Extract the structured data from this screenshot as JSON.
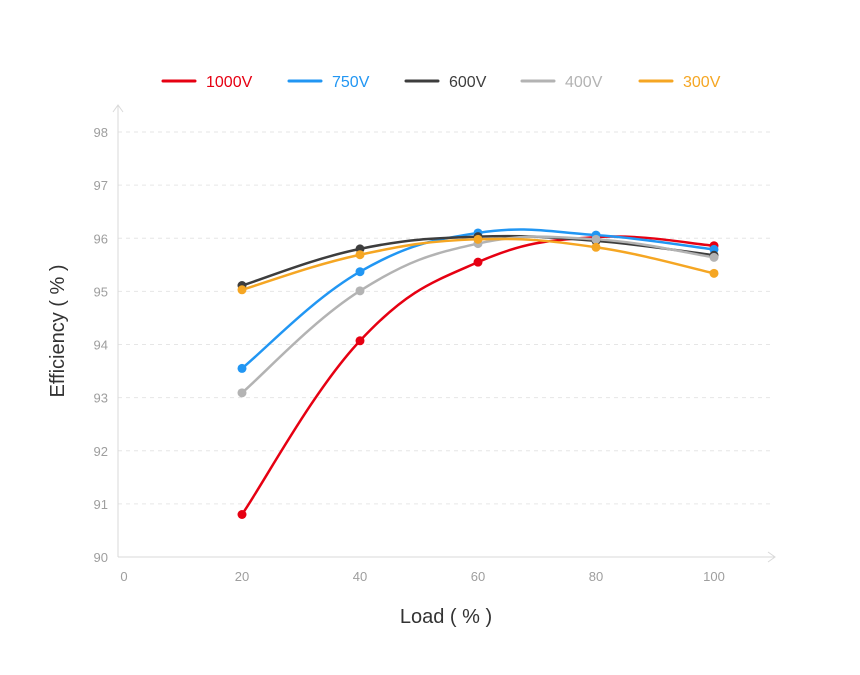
{
  "chart_data": {
    "type": "line",
    "xlabel": "Load ( % )",
    "ylabel": "Efficiency ( % )",
    "xlim": [
      0,
      110
    ],
    "ylim": [
      90,
      98
    ],
    "x_ticks": [
      0,
      20,
      40,
      60,
      80,
      100
    ],
    "y_ticks": [
      90,
      91,
      92,
      93,
      94,
      95,
      96,
      97,
      98
    ],
    "x": [
      20,
      40,
      60,
      80,
      100
    ],
    "grid": "horizontal dashed",
    "legend_position": "top",
    "smooth": true,
    "series": [
      {
        "name": "1000V",
        "color": "#e60012",
        "values": [
          90.8,
          94.07,
          95.55,
          96.02,
          95.86
        ]
      },
      {
        "name": "750V",
        "color": "#2196f3",
        "values": [
          93.55,
          95.37,
          96.1,
          96.06,
          95.79
        ]
      },
      {
        "name": "600V",
        "color": "#3d3d3d",
        "values": [
          95.11,
          95.8,
          96.03,
          95.95,
          95.68
        ]
      },
      {
        "name": "400V",
        "color": "#b3b3b3",
        "values": [
          93.09,
          95.01,
          95.9,
          95.98,
          95.64
        ]
      },
      {
        "name": "300V",
        "color": "#f5a623",
        "values": [
          95.03,
          95.69,
          95.98,
          95.83,
          95.34
        ]
      }
    ]
  }
}
